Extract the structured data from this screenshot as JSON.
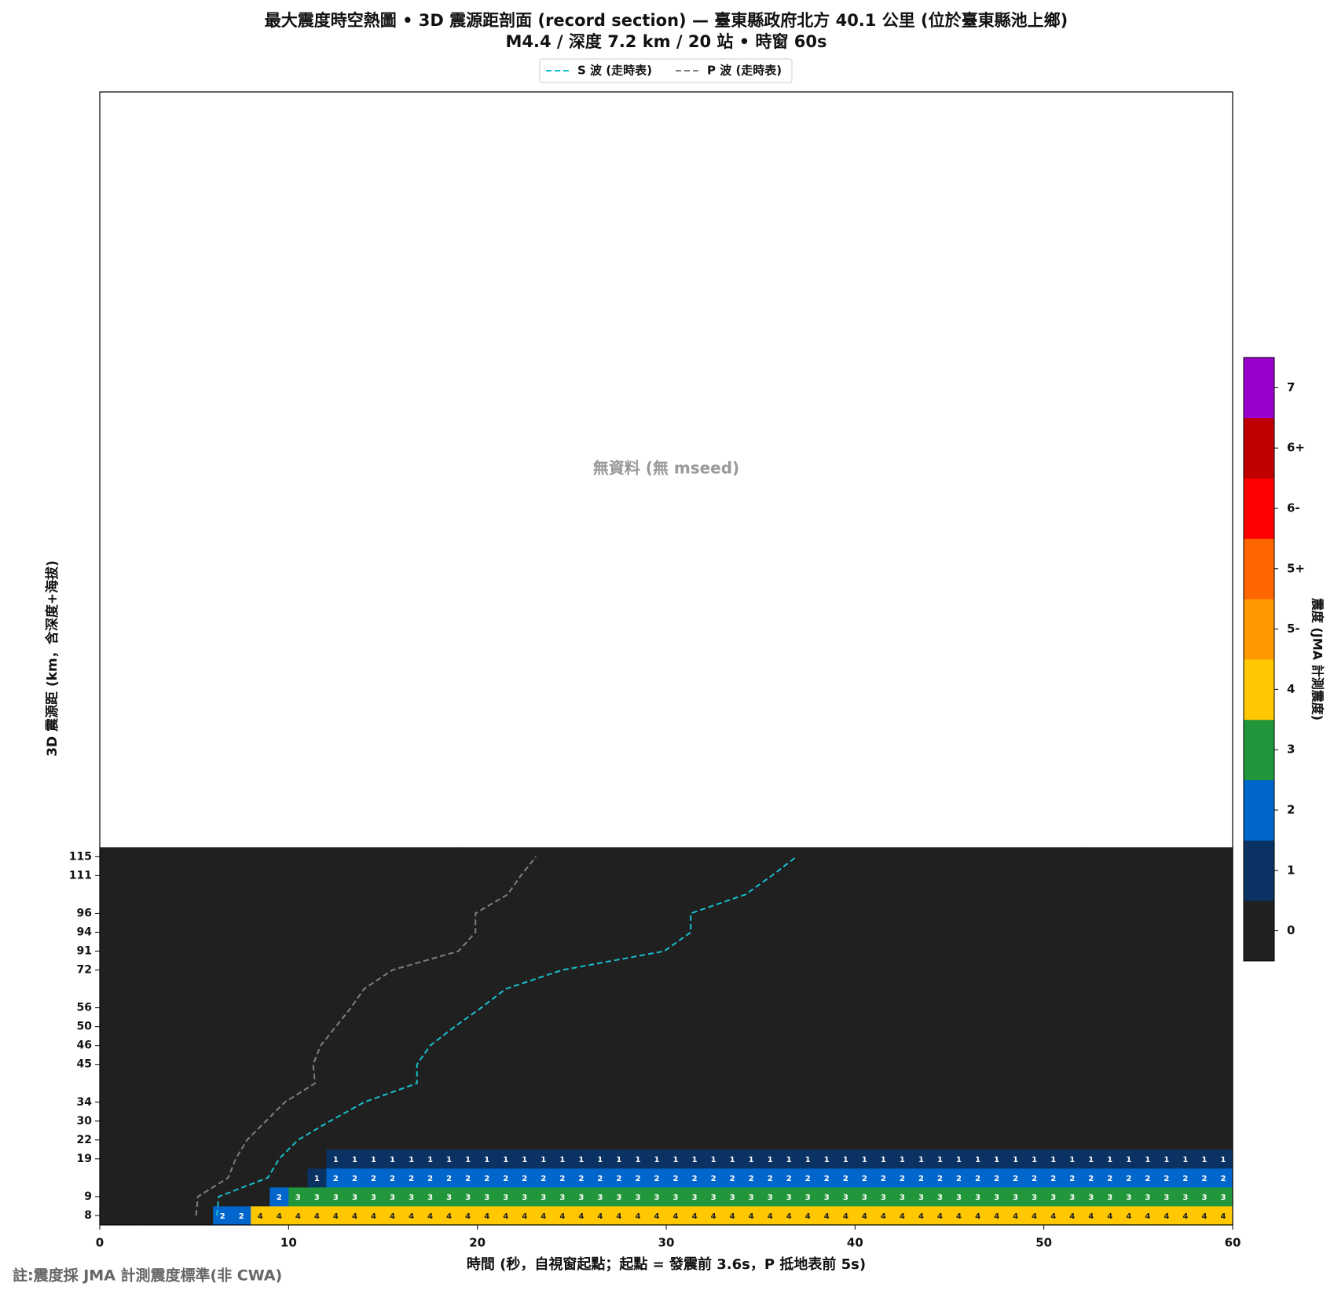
{
  "chart_data": {
    "type": "heatmap",
    "title": "最大震度時空熱圖 • 3D 震源距剖面 (record section) — 臺東縣政府北方  40.1  公里 (位於臺東縣池上鄉)",
    "subtitle": "M4.4 / 深度 7.2 km / 20 站 • 時窗 60s",
    "annotation": "無資料 (無 mseed)",
    "footnote": "註:震度採 JMA 計測震度標準(非 CWA)",
    "x_label": "時間 (秒，自視窗起點；起點 = 發震前 3.6s，P 抵地表前 5s)",
    "y_label": "3D 震源距 (km，含深度+海拔)",
    "xlim": [
      0,
      60
    ],
    "xticks": [
      0,
      10,
      20,
      30,
      40,
      50,
      60
    ],
    "ylim": [
      -0.5,
      59.5
    ],
    "bins": [
      0,
      1,
      2,
      3,
      4,
      5,
      6,
      7,
      8,
      9,
      10,
      11,
      12,
      13,
      14,
      15,
      16,
      17,
      18,
      19,
      20,
      21,
      22,
      23,
      24,
      25,
      26,
      27,
      28,
      29,
      30,
      31,
      32,
      33,
      34,
      35,
      36,
      37,
      38,
      39,
      40,
      41,
      42,
      43,
      44,
      45,
      46,
      47,
      48,
      49,
      50,
      51,
      52,
      53,
      54,
      55,
      56,
      57,
      58,
      59,
      60
    ],
    "categories": [
      8,
      9,
      null,
      19,
      22,
      30,
      34,
      null,
      45,
      46,
      50,
      56,
      null,
      72,
      91,
      94,
      96,
      null,
      111,
      115
    ],
    "values": [
      [
        0,
        0,
        0,
        0,
        0,
        0,
        2,
        2,
        4,
        4,
        4,
        4,
        4,
        4,
        4,
        4,
        4,
        4,
        4,
        4,
        4,
        4,
        4,
        4,
        4,
        4,
        4,
        4,
        4,
        4,
        4,
        4,
        4,
        4,
        4,
        4,
        4,
        4,
        4,
        4,
        4,
        4,
        4,
        4,
        4,
        4,
        4,
        4,
        4,
        4,
        4,
        4,
        4,
        4,
        4,
        4,
        4,
        4,
        4,
        4
      ],
      [
        0,
        0,
        0,
        0,
        0,
        0,
        0,
        0,
        0,
        2,
        3,
        3,
        3,
        3,
        3,
        3,
        3,
        3,
        3,
        3,
        3,
        3,
        3,
        3,
        3,
        3,
        3,
        3,
        3,
        3,
        3,
        3,
        3,
        3,
        3,
        3,
        3,
        3,
        3,
        3,
        3,
        3,
        3,
        3,
        3,
        3,
        3,
        3,
        3,
        3,
        3,
        3,
        3,
        3,
        3,
        3,
        3,
        3,
        3,
        3
      ],
      [
        0,
        0,
        0,
        0,
        0,
        0,
        0,
        0,
        0,
        0,
        0,
        1,
        2,
        2,
        2,
        2,
        2,
        2,
        2,
        2,
        2,
        2,
        2,
        2,
        2,
        2,
        2,
        2,
        2,
        2,
        2,
        2,
        2,
        2,
        2,
        2,
        2,
        2,
        2,
        2,
        2,
        2,
        2,
        2,
        2,
        2,
        2,
        2,
        2,
        2,
        2,
        2,
        2,
        2,
        2,
        2,
        2,
        2,
        2,
        2
      ],
      [
        0,
        0,
        0,
        0,
        0,
        0,
        0,
        0,
        0,
        0,
        0,
        0,
        1,
        1,
        1,
        1,
        1,
        1,
        1,
        1,
        1,
        1,
        1,
        1,
        1,
        1,
        1,
        1,
        1,
        1,
        1,
        1,
        1,
        1,
        1,
        1,
        1,
        1,
        1,
        1,
        1,
        1,
        1,
        1,
        1,
        1,
        1,
        1,
        1,
        1,
        1,
        1,
        1,
        1,
        1,
        1,
        1,
        1,
        1,
        1
      ],
      [
        0,
        0,
        0,
        0,
        0,
        0,
        0,
        0,
        0,
        0,
        0,
        0,
        0,
        0,
        0,
        0,
        0,
        0,
        0,
        0,
        0,
        0,
        0,
        0,
        0,
        0,
        0,
        0,
        0,
        0,
        0,
        0,
        0,
        0,
        0,
        0,
        0,
        0,
        0,
        0,
        0,
        0,
        0,
        0,
        0,
        0,
        0,
        0,
        0,
        0,
        0,
        0,
        0,
        0,
        0,
        0,
        0,
        0,
        0,
        0
      ],
      [
        0,
        0,
        0,
        0,
        0,
        0,
        0,
        0,
        0,
        0,
        0,
        0,
        0,
        0,
        0,
        0,
        0,
        0,
        0,
        0,
        0,
        0,
        0,
        0,
        0,
        0,
        0,
        0,
        0,
        0,
        0,
        0,
        0,
        0,
        0,
        0,
        0,
        0,
        0,
        0,
        0,
        0,
        0,
        0,
        0,
        0,
        0,
        0,
        0,
        0,
        0,
        0,
        0,
        0,
        0,
        0,
        0,
        0,
        0,
        0
      ],
      [
        0,
        0,
        0,
        0,
        0,
        0,
        0,
        0,
        0,
        0,
        0,
        0,
        0,
        0,
        0,
        0,
        0,
        0,
        0,
        0,
        0,
        0,
        0,
        0,
        0,
        0,
        0,
        0,
        0,
        0,
        0,
        0,
        0,
        0,
        0,
        0,
        0,
        0,
        0,
        0,
        0,
        0,
        0,
        0,
        0,
        0,
        0,
        0,
        0,
        0,
        0,
        0,
        0,
        0,
        0,
        0,
        0,
        0,
        0,
        0
      ],
      [
        0,
        0,
        0,
        0,
        0,
        0,
        0,
        0,
        0,
        0,
        0,
        0,
        0,
        0,
        0,
        0,
        0,
        0,
        0,
        0,
        0,
        0,
        0,
        0,
        0,
        0,
        0,
        0,
        0,
        0,
        0,
        0,
        0,
        0,
        0,
        0,
        0,
        0,
        0,
        0,
        0,
        0,
        0,
        0,
        0,
        0,
        0,
        0,
        0,
        0,
        0,
        0,
        0,
        0,
        0,
        0,
        0,
        0,
        0,
        0
      ],
      [
        0,
        0,
        0,
        0,
        0,
        0,
        0,
        0,
        0,
        0,
        0,
        0,
        0,
        0,
        0,
        0,
        0,
        0,
        0,
        0,
        0,
        0,
        0,
        0,
        0,
        0,
        0,
        0,
        0,
        0,
        0,
        0,
        0,
        0,
        0,
        0,
        0,
        0,
        0,
        0,
        0,
        0,
        0,
        0,
        0,
        0,
        0,
        0,
        0,
        0,
        0,
        0,
        0,
        0,
        0,
        0,
        0,
        0,
        0,
        0
      ],
      [
        0,
        0,
        0,
        0,
        0,
        0,
        0,
        0,
        0,
        0,
        0,
        0,
        0,
        0,
        0,
        0,
        0,
        0,
        0,
        0,
        0,
        0,
        0,
        0,
        0,
        0,
        0,
        0,
        0,
        0,
        0,
        0,
        0,
        0,
        0,
        0,
        0,
        0,
        0,
        0,
        0,
        0,
        0,
        0,
        0,
        0,
        0,
        0,
        0,
        0,
        0,
        0,
        0,
        0,
        0,
        0,
        0,
        0,
        0,
        0
      ],
      [
        0,
        0,
        0,
        0,
        0,
        0,
        0,
        0,
        0,
        0,
        0,
        0,
        0,
        0,
        0,
        0,
        0,
        0,
        0,
        0,
        0,
        0,
        0,
        0,
        0,
        0,
        0,
        0,
        0,
        0,
        0,
        0,
        0,
        0,
        0,
        0,
        0,
        0,
        0,
        0,
        0,
        0,
        0,
        0,
        0,
        0,
        0,
        0,
        0,
        0,
        0,
        0,
        0,
        0,
        0,
        0,
        0,
        0,
        0,
        0
      ],
      [
        0,
        0,
        0,
        0,
        0,
        0,
        0,
        0,
        0,
        0,
        0,
        0,
        0,
        0,
        0,
        0,
        0,
        0,
        0,
        0,
        0,
        0,
        0,
        0,
        0,
        0,
        0,
        0,
        0,
        0,
        0,
        0,
        0,
        0,
        0,
        0,
        0,
        0,
        0,
        0,
        0,
        0,
        0,
        0,
        0,
        0,
        0,
        0,
        0,
        0,
        0,
        0,
        0,
        0,
        0,
        0,
        0,
        0,
        0,
        0
      ],
      [
        0,
        0,
        0,
        0,
        0,
        0,
        0,
        0,
        0,
        0,
        0,
        0,
        0,
        0,
        0,
        0,
        0,
        0,
        0,
        0,
        0,
        0,
        0,
        0,
        0,
        0,
        0,
        0,
        0,
        0,
        0,
        0,
        0,
        0,
        0,
        0,
        0,
        0,
        0,
        0,
        0,
        0,
        0,
        0,
        0,
        0,
        0,
        0,
        0,
        0,
        0,
        0,
        0,
        0,
        0,
        0,
        0,
        0,
        0,
        0
      ],
      [
        0,
        0,
        0,
        0,
        0,
        0,
        0,
        0,
        0,
        0,
        0,
        0,
        0,
        0,
        0,
        0,
        0,
        0,
        0,
        0,
        0,
        0,
        0,
        0,
        0,
        0,
        0,
        0,
        0,
        0,
        0,
        0,
        0,
        0,
        0,
        0,
        0,
        0,
        0,
        0,
        0,
        0,
        0,
        0,
        0,
        0,
        0,
        0,
        0,
        0,
        0,
        0,
        0,
        0,
        0,
        0,
        0,
        0,
        0,
        0
      ],
      [
        0,
        0,
        0,
        0,
        0,
        0,
        0,
        0,
        0,
        0,
        0,
        0,
        0,
        0,
        0,
        0,
        0,
        0,
        0,
        0,
        0,
        0,
        0,
        0,
        0,
        0,
        0,
        0,
        0,
        0,
        0,
        0,
        0,
        0,
        0,
        0,
        0,
        0,
        0,
        0,
        0,
        0,
        0,
        0,
        0,
        0,
        0,
        0,
        0,
        0,
        0,
        0,
        0,
        0,
        0,
        0,
        0,
        0,
        0,
        0
      ],
      [
        0,
        0,
        0,
        0,
        0,
        0,
        0,
        0,
        0,
        0,
        0,
        0,
        0,
        0,
        0,
        0,
        0,
        0,
        0,
        0,
        0,
        0,
        0,
        0,
        0,
        0,
        0,
        0,
        0,
        0,
        0,
        0,
        0,
        0,
        0,
        0,
        0,
        0,
        0,
        0,
        0,
        0,
        0,
        0,
        0,
        0,
        0,
        0,
        0,
        0,
        0,
        0,
        0,
        0,
        0,
        0,
        0,
        0,
        0,
        0
      ],
      [
        0,
        0,
        0,
        0,
        0,
        0,
        0,
        0,
        0,
        0,
        0,
        0,
        0,
        0,
        0,
        0,
        0,
        0,
        0,
        0,
        0,
        0,
        0,
        0,
        0,
        0,
        0,
        0,
        0,
        0,
        0,
        0,
        0,
        0,
        0,
        0,
        0,
        0,
        0,
        0,
        0,
        0,
        0,
        0,
        0,
        0,
        0,
        0,
        0,
        0,
        0,
        0,
        0,
        0,
        0,
        0,
        0,
        0,
        0,
        0
      ],
      [
        0,
        0,
        0,
        0,
        0,
        0,
        0,
        0,
        0,
        0,
        0,
        0,
        0,
        0,
        0,
        0,
        0,
        0,
        0,
        0,
        0,
        0,
        0,
        0,
        0,
        0,
        0,
        0,
        0,
        0,
        0,
        0,
        0,
        0,
        0,
        0,
        0,
        0,
        0,
        0,
        0,
        0,
        0,
        0,
        0,
        0,
        0,
        0,
        0,
        0,
        0,
        0,
        0,
        0,
        0,
        0,
        0,
        0,
        0,
        0
      ],
      [
        0,
        0,
        0,
        0,
        0,
        0,
        0,
        0,
        0,
        0,
        0,
        0,
        0,
        0,
        0,
        0,
        0,
        0,
        0,
        0,
        0,
        0,
        0,
        0,
        0,
        0,
        0,
        0,
        0,
        0,
        0,
        0,
        0,
        0,
        0,
        0,
        0,
        0,
        0,
        0,
        0,
        0,
        0,
        0,
        0,
        0,
        0,
        0,
        0,
        0,
        0,
        0,
        0,
        0,
        0,
        0,
        0,
        0,
        0,
        0
      ],
      [
        0,
        0,
        0,
        0,
        0,
        0,
        0,
        0,
        0,
        0,
        0,
        0,
        0,
        0,
        0,
        0,
        0,
        0,
        0,
        0,
        0,
        0,
        0,
        0,
        0,
        0,
        0,
        0,
        0,
        0,
        0,
        0,
        0,
        0,
        0,
        0,
        0,
        0,
        0,
        0,
        0,
        0,
        0,
        0,
        0,
        0,
        0,
        0,
        0,
        0,
        0,
        0,
        0,
        0,
        0,
        0,
        0,
        0,
        0,
        0
      ]
    ],
    "series": [
      {
        "name": "S 波 (走時表)",
        "color": "#17becf",
        "values": [
          6.2,
          6.3,
          8.9,
          9.5,
          10.5,
          12.2,
          14.0,
          16.8,
          16.8,
          17.5,
          18.8,
          20.2,
          21.5,
          24.5,
          29.9,
          31.3,
          31.3,
          34.2,
          35.6,
          36.9
        ]
      },
      {
        "name": "P 波 (走時表)",
        "color": "#7f7f7f",
        "values": [
          5.1,
          5.2,
          6.8,
          7.2,
          7.8,
          8.8,
          9.8,
          11.4,
          11.3,
          11.7,
          12.5,
          13.3,
          14.0,
          15.5,
          19.0,
          19.9,
          19.9,
          21.6,
          22.3,
          23.1
        ]
      }
    ],
    "colorbar": {
      "label": "震度 (JMA 計測震度)",
      "levels": [
        "0",
        "1",
        "2",
        "3",
        "4",
        "5-",
        "5+",
        "6-",
        "6+",
        "7"
      ],
      "colors": [
        "#202020",
        "#0a3262",
        "#0066cc",
        "#22963a",
        "#ffc800",
        "#ff9900",
        "#ff6600",
        "#ff0000",
        "#c00000",
        "#9900cc"
      ]
    }
  }
}
